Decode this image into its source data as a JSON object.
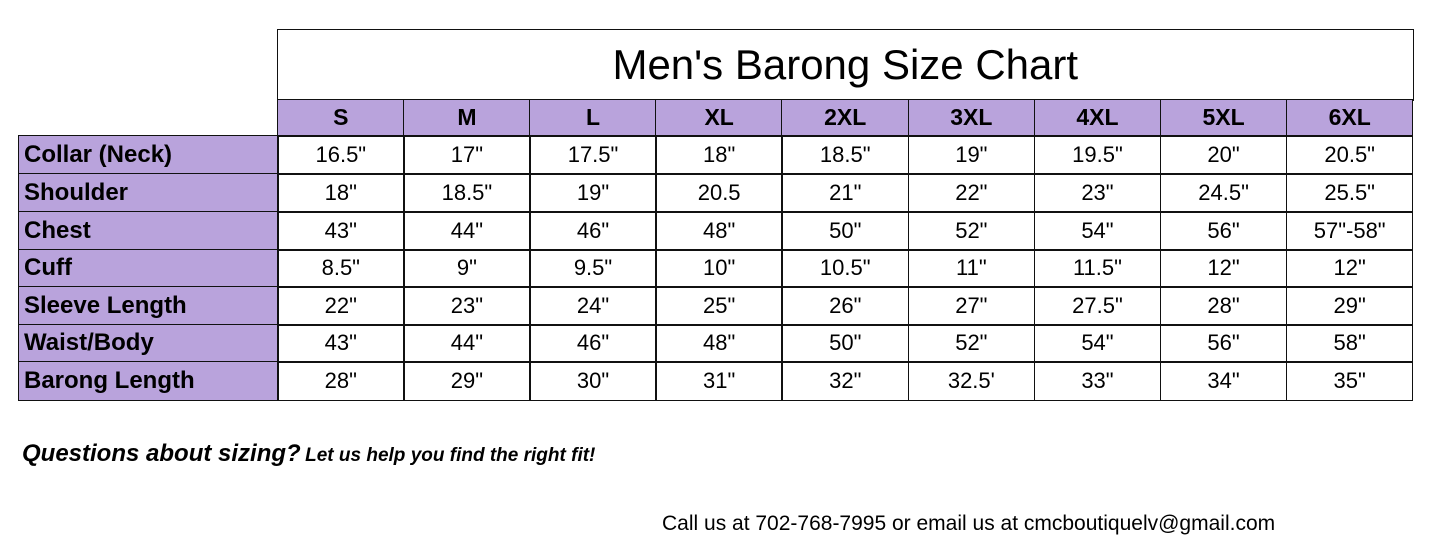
{
  "title": "Men's Barong Size Chart",
  "accent_color": "#b9a3dc",
  "sizes": [
    "S",
    "M",
    "L",
    "XL",
    "2XL",
    "3XL",
    "4XL",
    "5XL",
    "6XL"
  ],
  "rows": [
    {
      "label": "Collar (Neck)",
      "values": [
        "16.5\"",
        "17\"",
        "17.5\"",
        "18\"",
        "18.5\"",
        "19\"",
        "19.5\"",
        "20\"",
        "20.5\""
      ]
    },
    {
      "label": "Shoulder",
      "values": [
        "18\"",
        "18.5\"",
        "19\"",
        "20.5",
        "21\"",
        "22\"",
        "23\"",
        "24.5\"",
        "25.5\""
      ]
    },
    {
      "label": "Chest",
      "values": [
        "43\"",
        "44\"",
        "46\"",
        "48\"",
        "50\"",
        "52\"",
        "54\"",
        "56\"",
        "57\"-58\""
      ]
    },
    {
      "label": "Cuff",
      "values": [
        "8.5\"",
        "9\"",
        "9.5\"",
        "10\"",
        "10.5\"",
        "11\"",
        "11.5\"",
        "12\"",
        "12\""
      ]
    },
    {
      "label": "Sleeve Length",
      "values": [
        "22\"",
        "23\"",
        "24\"",
        "25\"",
        "26\"",
        "27\"",
        "27.5\"",
        "28\"",
        "29\""
      ]
    },
    {
      "label": "Waist/Body",
      "values": [
        "43\"",
        "44\"",
        "46\"",
        "48\"",
        "50\"",
        "52\"",
        "54\"",
        "56\"",
        "58\""
      ]
    },
    {
      "label": "Barong Length",
      "values": [
        "28\"",
        "29\"",
        "30\"",
        "31\"",
        "32\"",
        "32.5'",
        "33\"",
        "34\"",
        "35\""
      ]
    }
  ],
  "footer": {
    "question": "Questions about sizing?",
    "help": "Let us help you find the right fit!",
    "contact": "Call us at 702-768-7995 or email us at cmcboutiquelv@gmail.com"
  }
}
